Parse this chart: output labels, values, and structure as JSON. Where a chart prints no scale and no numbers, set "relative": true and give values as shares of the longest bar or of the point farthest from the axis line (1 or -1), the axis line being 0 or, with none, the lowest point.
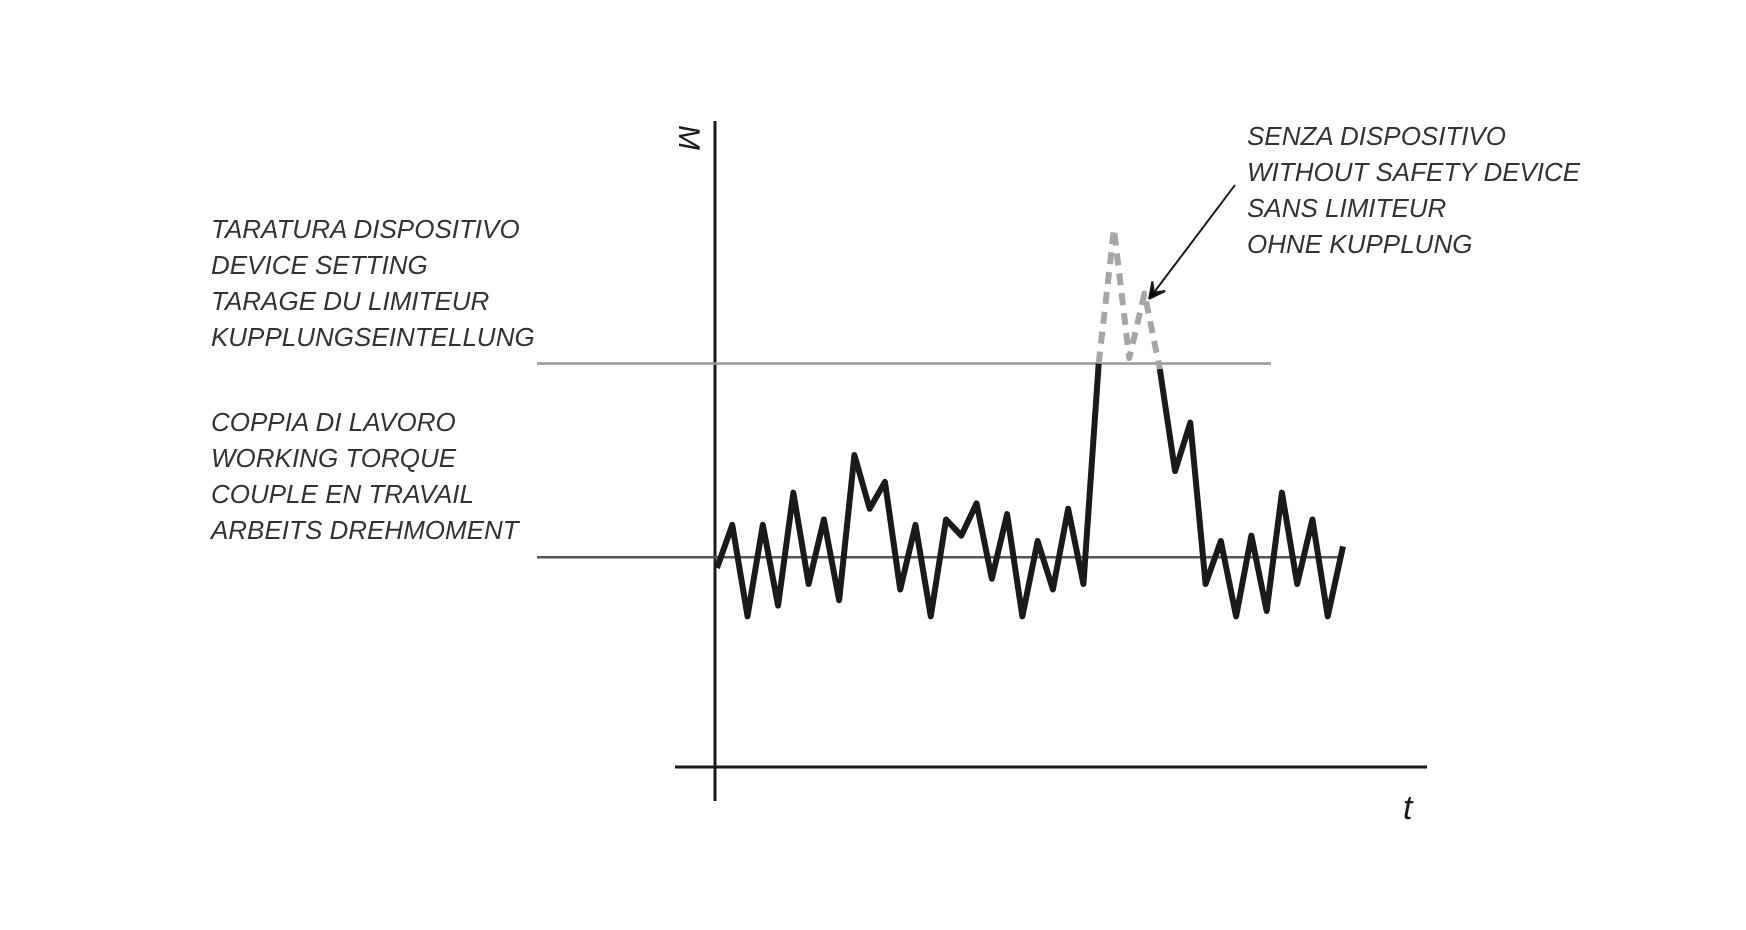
{
  "chart_data": {
    "type": "line",
    "relative": true,
    "xlabel": "t",
    "ylabel": "M",
    "tick_labels": false,
    "grid": false,
    "categories": [
      null,
      null,
      null,
      null,
      null,
      null,
      null,
      null,
      null,
      null,
      null,
      null,
      null,
      null,
      null,
      null,
      null,
      null,
      null,
      null,
      null,
      null,
      null,
      null,
      null,
      null,
      null,
      null,
      null,
      null,
      null,
      null,
      null,
      null,
      null,
      null,
      null,
      null,
      null,
      null,
      null,
      null
    ],
    "series": [
      {
        "color": "#1a1a1a",
        "line_style": "solid",
        "values": [
          0.37,
          0.45,
          0.28,
          0.45,
          0.3,
          0.51,
          0.34,
          0.46,
          0.31,
          0.58,
          0.48,
          0.53,
          0.33,
          0.45,
          0.28,
          0.46,
          0.43,
          0.49,
          0.35,
          0.47,
          0.28,
          0.42,
          0.33,
          0.48,
          0.34,
          0.75,
          null,
          null,
          null,
          0.74,
          0.55,
          0.64,
          0.34,
          0.42,
          0.28,
          0.43,
          0.29,
          0.51,
          0.34,
          0.46,
          0.28,
          0.41
        ]
      },
      {
        "color": "#a6a6a6",
        "line_style": "dashed",
        "values": [
          null,
          null,
          null,
          null,
          null,
          null,
          null,
          null,
          null,
          null,
          null,
          null,
          null,
          null,
          null,
          null,
          null,
          null,
          null,
          null,
          null,
          null,
          null,
          null,
          null,
          0.75,
          1.0,
          0.76,
          0.88,
          0.74,
          null,
          null,
          null,
          null,
          null,
          null,
          null,
          null,
          null,
          null,
          null,
          null
        ]
      }
    ],
    "ref_lines": [
      {
        "axis": "y",
        "value": 0.75,
        "label": "TARATURA DISPOSITIVO\nDEVICE SETTING\nTARAGE DU LIMITEUR\nKUPPLUNGSEINTELLUNG",
        "color": "#999999"
      },
      {
        "axis": "y",
        "value": 0.39,
        "label": "COPPIA DI LAVORO\nWORKING TORQUE\nCOUPLE EN TRAVAIL\nARBEITS DREHMOMENT",
        "color": "#555555"
      }
    ],
    "annotations": [
      "SENZA DISPOSITIVO\nWITHOUT SAFETY DEVICE\nSANS LIMITEUR\nOHNE KUPPLUNG"
    ]
  }
}
